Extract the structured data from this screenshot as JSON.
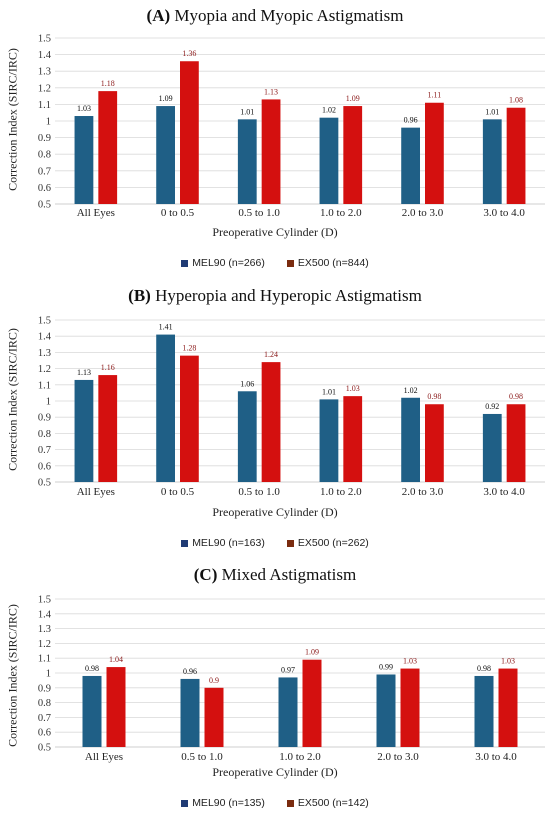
{
  "colors": {
    "mel90": "#1f5f86",
    "ex500": "#d4100f",
    "grid": "#d9d9d9",
    "axis": "#bfbfbf",
    "legend_mel90": "#203b75",
    "legend_ex500": "#7a2b0f",
    "label_mel90": "#111111",
    "label_ex500": "#8b1a1a"
  },
  "chart_data": [
    {
      "type": "bar",
      "title_tag": "(A)",
      "title": "Myopia and Myopic Astigmatism",
      "xlabel": "Preoperative Cylinder (D)",
      "ylabel": "Correction Index (SIRC/IRC)",
      "ylim": [
        0.5,
        1.5
      ],
      "yticks": [
        "0.5",
        "0.6",
        "0.7",
        "0.8",
        "0.9",
        "1",
        "1.1",
        "1.2",
        "1.3",
        "1.4",
        "1.5"
      ],
      "categories": [
        "All Eyes",
        "0 to 0.5",
        "0.5 to 1.0",
        "1.0 to 2.0",
        "2.0 to 3.0",
        "3.0 to 4.0"
      ],
      "series": [
        {
          "name": "MEL90 (n=266)",
          "values": [
            1.03,
            1.09,
            1.01,
            1.02,
            0.96,
            1.01
          ],
          "labels": [
            "1.03",
            "1.09",
            "1.01",
            "1.02",
            "0.96",
            "1.01"
          ]
        },
        {
          "name": "EX500 (n=844)",
          "values": [
            1.18,
            1.36,
            1.13,
            1.09,
            1.11,
            1.08
          ],
          "labels": [
            "1.18",
            "1.36",
            "1.13",
            "1.09",
            "1.11",
            "1.08"
          ]
        }
      ],
      "grid": true,
      "legend_position": "bottom"
    },
    {
      "type": "bar",
      "title_tag": "(B)",
      "title": "Hyperopia and Hyperopic Astigmatism",
      "xlabel": "Preoperative Cylinder (D)",
      "ylabel": "Correction Index (SIRC/IRC)",
      "ylim": [
        0.5,
        1.5
      ],
      "yticks": [
        "0.5",
        "0.6",
        "0.7",
        "0.8",
        "0.9",
        "1",
        "1.1",
        "1.2",
        "1.3",
        "1.4",
        "1.5"
      ],
      "categories": [
        "All Eyes",
        "0 to 0.5",
        "0.5 to 1.0",
        "1.0 to 2.0",
        "2.0 to 3.0",
        "3.0 to 4.0"
      ],
      "series": [
        {
          "name": "MEL90 (n=163)",
          "values": [
            1.13,
            1.41,
            1.06,
            1.01,
            1.02,
            0.92
          ],
          "labels": [
            "1.13",
            "1.41",
            "1.06",
            "1.01",
            "1.02",
            "0.92"
          ]
        },
        {
          "name": "EX500 (n=262)",
          "values": [
            1.16,
            1.28,
            1.24,
            1.03,
            0.98,
            0.98
          ],
          "labels": [
            "1.16",
            "1.28",
            "1.24",
            "1.03",
            "0.98",
            "0.98"
          ]
        }
      ],
      "grid": true,
      "legend_position": "bottom"
    },
    {
      "type": "bar",
      "title_tag": "(C)",
      "title": "Mixed Astigmatism",
      "xlabel": "Preoperative Cylinder (D)",
      "ylabel": "Correction Index (SIRC/IRC)",
      "ylim": [
        0.5,
        1.5
      ],
      "yticks": [
        "0.5",
        "0.6",
        "0.7",
        "0.8",
        "0.9",
        "1",
        "1.1",
        "1.2",
        "1.3",
        "1.4",
        "1.5"
      ],
      "categories": [
        "All Eyes",
        "0.5 to 1.0",
        "1.0 to 2.0",
        "2.0 to 3.0",
        "3.0 to 4.0"
      ],
      "series": [
        {
          "name": "MEL90 (n=135)",
          "values": [
            0.98,
            0.96,
            0.97,
            0.99,
            0.98
          ],
          "labels": [
            "0.98",
            "0.96",
            "0.97",
            "0.99",
            "0.98"
          ]
        },
        {
          "name": "EX500 (n=142)",
          "values": [
            1.04,
            0.9,
            1.09,
            1.03,
            1.03
          ],
          "labels": [
            "1.04",
            "0.9",
            "1.09",
            "1.03",
            "1.03"
          ]
        }
      ],
      "grid": true,
      "legend_position": "bottom"
    }
  ]
}
